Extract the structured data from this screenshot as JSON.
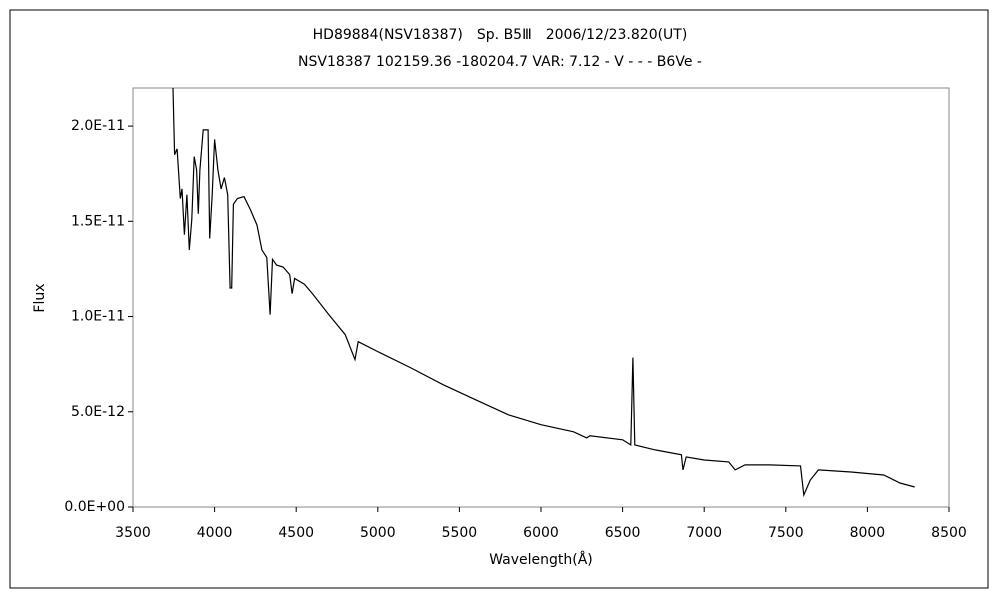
{
  "chart_data": {
    "type": "line",
    "title": "HD89884(NSV18387)　Sp. B5Ⅲ　2006/12/23.820(UT)",
    "subtitle": "NSV18387 102159.36 -180204.7 VAR: 7.12 - V - - - B6Ve -",
    "x_label": "Wavelength(Å)",
    "y_label": "Flux",
    "x": [
      3745,
      3755,
      3770,
      3790,
      3800,
      3815,
      3830,
      3845,
      3860,
      3875,
      3890,
      3900,
      3910,
      3930,
      3960,
      3970,
      3985,
      4000,
      4020,
      4040,
      4060,
      4080,
      4095,
      4105,
      4115,
      4140,
      4180,
      4220,
      4260,
      4290,
      4320,
      4340,
      4355,
      4380,
      4420,
      4460,
      4475,
      4490,
      4550,
      4600,
      4700,
      4800,
      4860,
      4880,
      5000,
      5200,
      5400,
      5600,
      5800,
      6000,
      6200,
      6280,
      6300,
      6500,
      6550,
      6563,
      6575,
      6700,
      6860,
      6870,
      6890,
      7000,
      7150,
      7190,
      7250,
      7400,
      7590,
      7610,
      7650,
      7700,
      7900,
      8100,
      8200,
      8290
    ],
    "series": [
      {
        "color": "#000000",
        "values": [
          2.2e-11,
          1.85e-11,
          1.88e-11,
          1.62e-11,
          1.67e-11,
          1.43e-11,
          1.64e-11,
          1.35e-11,
          1.51e-11,
          1.84e-11,
          1.77e-11,
          1.54e-11,
          1.77e-11,
          1.98e-11,
          1.98e-11,
          1.41e-11,
          1.64e-11,
          1.93e-11,
          1.77e-11,
          1.67e-11,
          1.73e-11,
          1.64e-11,
          1.15e-11,
          1.15e-11,
          1.59e-11,
          1.62e-11,
          1.63e-11,
          1.56e-11,
          1.48e-11,
          1.35e-11,
          1.31e-11,
          1.01e-11,
          1.3e-11,
          1.27e-11,
          1.26e-11,
          1.22e-11,
          1.12e-11,
          1.2e-11,
          1.17e-11,
          1.12e-11,
          1.01e-11,
          9.05e-12,
          7.74e-12,
          8.68e-12,
          8.16e-12,
          7.32e-12,
          6.42e-12,
          5.63e-12,
          4.84e-12,
          4.32e-12,
          3.95e-12,
          3.63e-12,
          3.74e-12,
          3.53e-12,
          3.26e-12,
          7.84e-12,
          3.26e-12,
          3e-12,
          2.74e-12,
          1.95e-12,
          2.63e-12,
          2.47e-12,
          2.37e-12,
          1.95e-12,
          2.21e-12,
          2.21e-12,
          2.16e-12,
          6.3e-13,
          1.42e-12,
          1.95e-12,
          1.84e-12,
          1.68e-12,
          1.26e-12,
          1.05e-12
        ]
      }
    ],
    "xlim": [
      3500,
      8500
    ],
    "xticks": [
      3500,
      4000,
      4500,
      5000,
      5500,
      6000,
      6500,
      7000,
      7500,
      8000,
      8500
    ],
    "ylim": [
      0,
      2.2e-11
    ],
    "yticks": [
      {
        "value": 0,
        "label": "0.0E+00"
      },
      {
        "value": 5e-12,
        "label": "5.0E-12"
      },
      {
        "value": 1e-11,
        "label": "1.0E-11"
      },
      {
        "value": 1.5e-11,
        "label": "1.5E-11"
      },
      {
        "value": 2e-11,
        "label": "2.0E-11"
      }
    ],
    "grid": false
  }
}
